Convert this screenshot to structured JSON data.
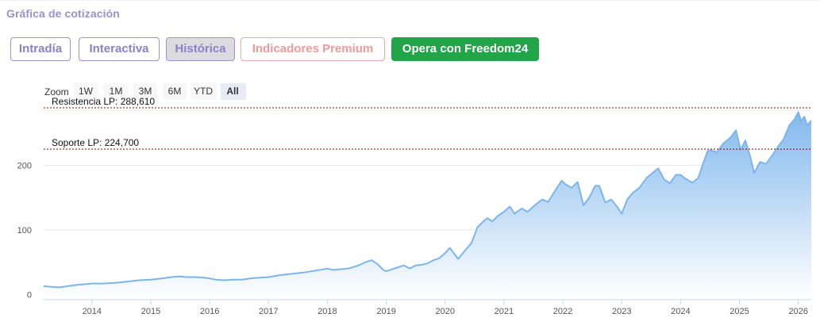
{
  "section_title": "Gráfica de cotización",
  "tabs": [
    {
      "label": "Intradía",
      "variant": "normal"
    },
    {
      "label": "Interactiva",
      "variant": "normal"
    },
    {
      "label": "Histórica",
      "variant": "active"
    },
    {
      "label": "Indicadores Premium",
      "variant": "premium"
    },
    {
      "label": "Opera con Freedom24",
      "variant": "cta"
    }
  ],
  "zoom": {
    "label": "Zoom",
    "options": [
      "1W",
      "1M",
      "3M",
      "6M",
      "YTD",
      "All"
    ],
    "selected": "All"
  },
  "colors": {
    "line": "#7cb5ec",
    "area_top": "#7cb5ec",
    "area_bottom": "#ffffff",
    "level_line": "#8b0000",
    "cta": "#22a448",
    "tab_border": "#9d93d3"
  },
  "chart_data": {
    "type": "area",
    "title": "",
    "xlabel": "",
    "ylabel": "",
    "x_ticks": [
      "2014",
      "2015",
      "2016",
      "2017",
      "2018",
      "2019",
      "2020",
      "2021",
      "2022",
      "2023",
      "2024",
      "2025",
      "2026"
    ],
    "y_ticks": [
      0,
      100,
      200
    ],
    "ylim": [
      -8,
      285
    ],
    "xlim": [
      2013.18,
      2026.22
    ],
    "grid": true,
    "levels": [
      {
        "label": "Resistencia LP: 288,610",
        "value": 288.61
      },
      {
        "label": "Soporte LP: 224,700",
        "value": 224.7
      }
    ],
    "series": [
      {
        "points": [
          [
            2013.18,
            13
          ],
          [
            2013.3,
            12
          ],
          [
            2013.45,
            11
          ],
          [
            2013.6,
            13
          ],
          [
            2013.75,
            15
          ],
          [
            2013.9,
            16
          ],
          [
            2014.0,
            17
          ],
          [
            2014.2,
            17
          ],
          [
            2014.4,
            18
          ],
          [
            2014.6,
            20
          ],
          [
            2014.8,
            22
          ],
          [
            2015.0,
            23
          ],
          [
            2015.2,
            25
          ],
          [
            2015.35,
            27
          ],
          [
            2015.5,
            28
          ],
          [
            2015.6,
            27
          ],
          [
            2015.75,
            27
          ],
          [
            2015.9,
            26
          ],
          [
            2016.0,
            25
          ],
          [
            2016.1,
            23
          ],
          [
            2016.25,
            22
          ],
          [
            2016.4,
            23
          ],
          [
            2016.55,
            23
          ],
          [
            2016.7,
            25
          ],
          [
            2016.85,
            26
          ],
          [
            2017.0,
            27
          ],
          [
            2017.2,
            30
          ],
          [
            2017.4,
            32
          ],
          [
            2017.6,
            34
          ],
          [
            2017.8,
            37
          ],
          [
            2018.0,
            40
          ],
          [
            2018.1,
            38
          ],
          [
            2018.2,
            39
          ],
          [
            2018.35,
            40
          ],
          [
            2018.5,
            44
          ],
          [
            2018.65,
            50
          ],
          [
            2018.75,
            53
          ],
          [
            2018.85,
            47
          ],
          [
            2018.95,
            38
          ],
          [
            2019.0,
            36
          ],
          [
            2019.1,
            39
          ],
          [
            2019.2,
            42
          ],
          [
            2019.3,
            45
          ],
          [
            2019.4,
            40
          ],
          [
            2019.5,
            45
          ],
          [
            2019.6,
            46
          ],
          [
            2019.7,
            48
          ],
          [
            2019.8,
            53
          ],
          [
            2019.9,
            56
          ],
          [
            2020.0,
            64
          ],
          [
            2020.08,
            72
          ],
          [
            2020.17,
            61
          ],
          [
            2020.22,
            55
          ],
          [
            2020.32,
            66
          ],
          [
            2020.45,
            80
          ],
          [
            2020.55,
            104
          ],
          [
            2020.65,
            113
          ],
          [
            2020.72,
            118
          ],
          [
            2020.8,
            113
          ],
          [
            2020.9,
            122
          ],
          [
            2021.0,
            128
          ],
          [
            2021.1,
            136
          ],
          [
            2021.18,
            125
          ],
          [
            2021.3,
            133
          ],
          [
            2021.4,
            128
          ],
          [
            2021.55,
            140
          ],
          [
            2021.65,
            147
          ],
          [
            2021.75,
            143
          ],
          [
            2021.9,
            165
          ],
          [
            2021.98,
            176
          ],
          [
            2022.05,
            170
          ],
          [
            2022.15,
            165
          ],
          [
            2022.25,
            174
          ],
          [
            2022.35,
            138
          ],
          [
            2022.45,
            150
          ],
          [
            2022.55,
            168
          ],
          [
            2022.62,
            168
          ],
          [
            2022.72,
            142
          ],
          [
            2022.82,
            147
          ],
          [
            2022.92,
            136
          ],
          [
            2023.0,
            125
          ],
          [
            2023.1,
            148
          ],
          [
            2023.2,
            158
          ],
          [
            2023.3,
            165
          ],
          [
            2023.42,
            180
          ],
          [
            2023.55,
            190
          ],
          [
            2023.62,
            195
          ],
          [
            2023.72,
            178
          ],
          [
            2023.82,
            172
          ],
          [
            2023.92,
            185
          ],
          [
            2024.0,
            185
          ],
          [
            2024.1,
            178
          ],
          [
            2024.2,
            173
          ],
          [
            2024.3,
            180
          ],
          [
            2024.38,
            202
          ],
          [
            2024.46,
            222
          ],
          [
            2024.52,
            223
          ],
          [
            2024.62,
            220
          ],
          [
            2024.72,
            233
          ],
          [
            2024.85,
            243
          ],
          [
            2024.94,
            254
          ],
          [
            2025.02,
            224
          ],
          [
            2025.1,
            238
          ],
          [
            2025.18,
            214
          ],
          [
            2025.25,
            188
          ],
          [
            2025.35,
            205
          ],
          [
            2025.45,
            202
          ],
          [
            2025.55,
            214
          ],
          [
            2025.65,
            228
          ],
          [
            2025.75,
            240
          ],
          [
            2025.85,
            262
          ],
          [
            2025.93,
            270
          ],
          [
            2026.0,
            282
          ],
          [
            2026.05,
            268
          ],
          [
            2026.1,
            275
          ],
          [
            2026.15,
            262
          ],
          [
            2026.22,
            269
          ]
        ]
      }
    ]
  }
}
